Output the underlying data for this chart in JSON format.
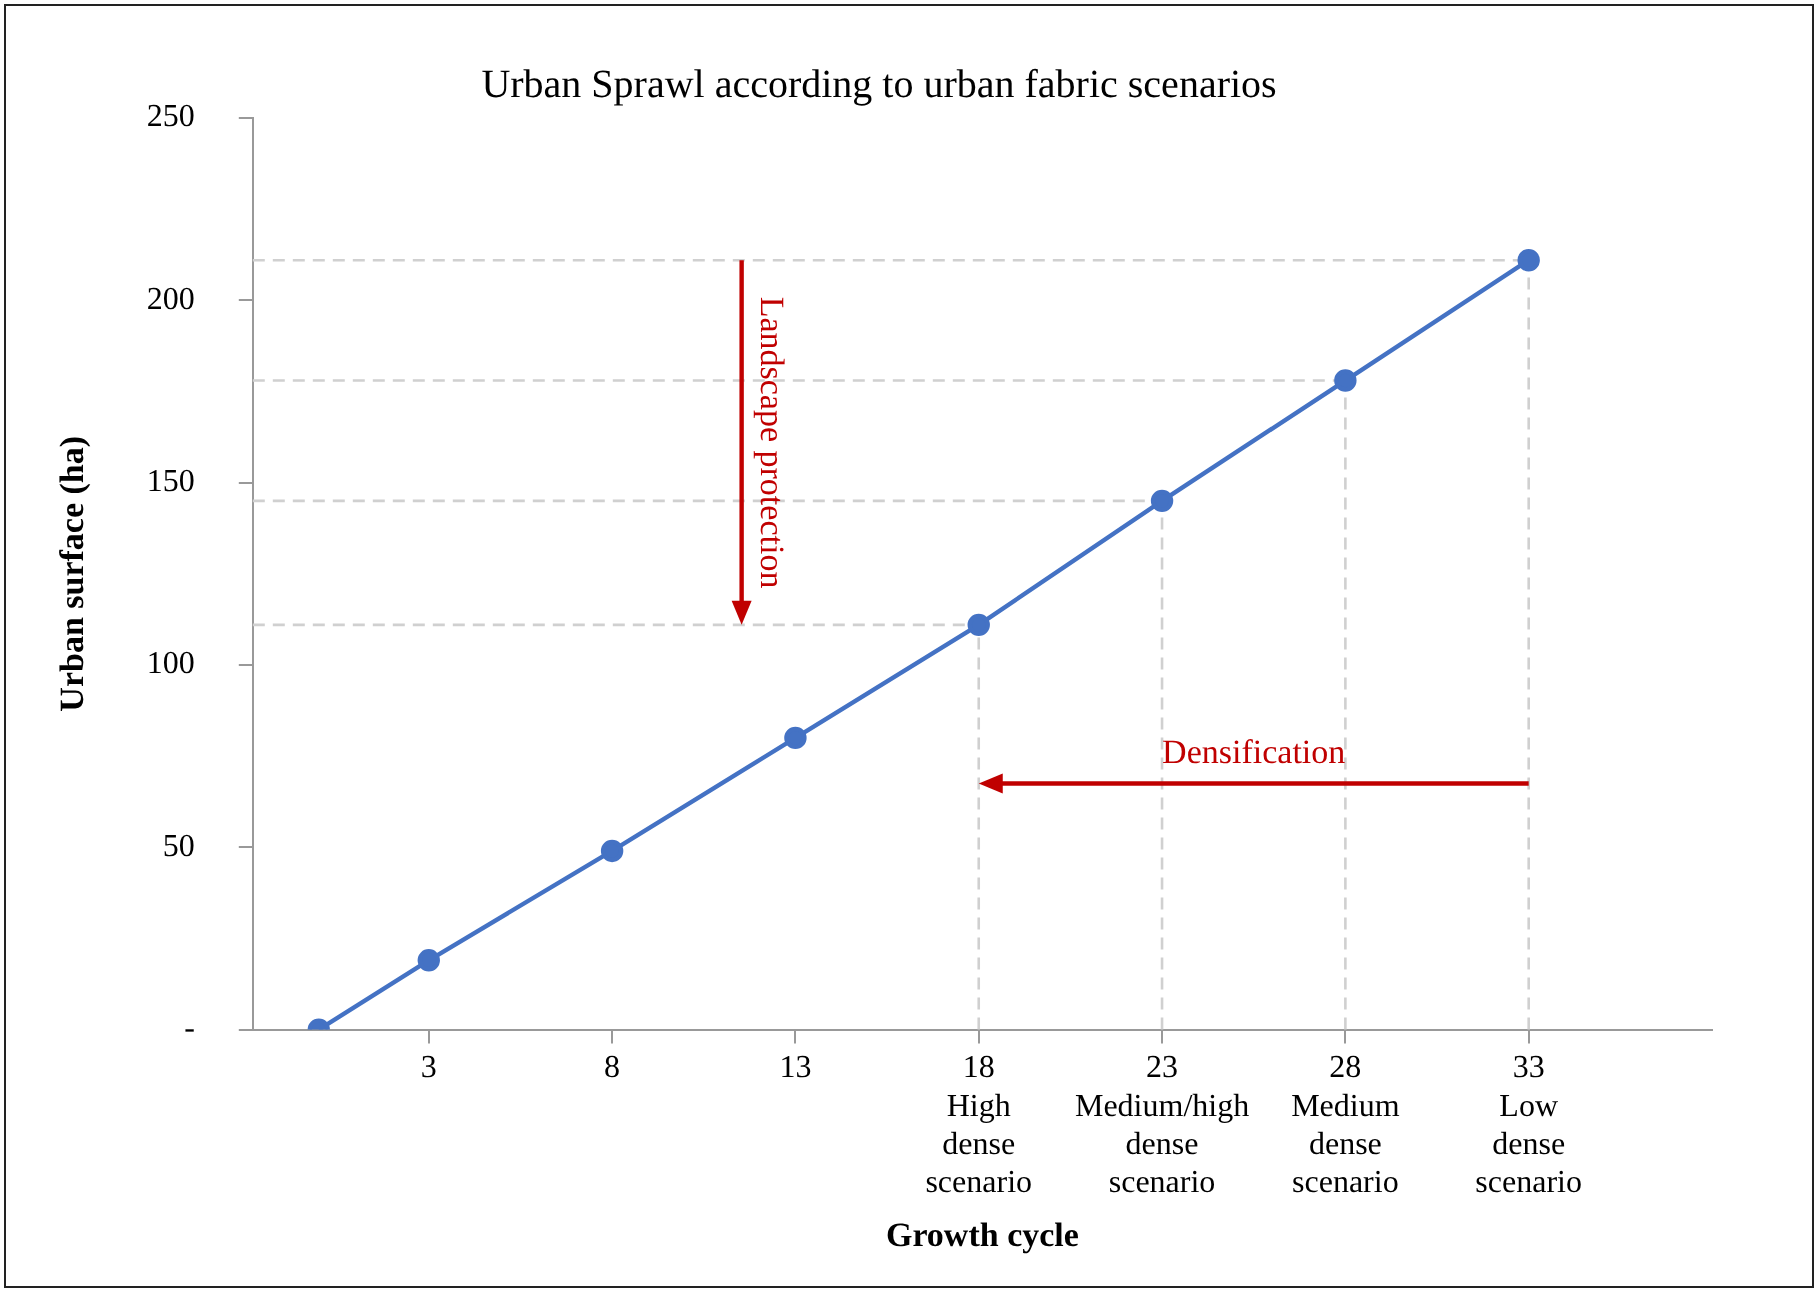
{
  "chart_data": {
    "type": "line",
    "title": "Urban Sprawl according to urban fabric scenarios",
    "xlabel": "Growth cycle",
    "ylabel": "Urban surface (ha)",
    "x": [
      0,
      3,
      8,
      13,
      18,
      23,
      28,
      33
    ],
    "series": [
      {
        "color": "#4472c4",
        "values": [
          0,
          19,
          49,
          80,
          111,
          145,
          178,
          211
        ]
      }
    ],
    "xlim": [
      -1.8,
      38
    ],
    "xticks": [
      3,
      8,
      13,
      {
        "value": 18,
        "label": "18\nHigh\ndense\nscenario"
      },
      {
        "value": 23,
        "label": "23\nMedium/high\ndense\nscenario"
      },
      {
        "value": 28,
        "label": "28\nMedium\ndense\nscenario"
      },
      {
        "value": 33,
        "label": "33\nLow\ndense\nscenario"
      }
    ],
    "ylim": [
      0,
      250
    ],
    "yticks": [
      {
        "value": 0,
        "label": "-"
      },
      50,
      100,
      150,
      200,
      250
    ],
    "ref_lines": [
      {
        "axis": "y",
        "value": 111,
        "color": "#d0d0d0",
        "line_style": "dashed"
      },
      {
        "axis": "y",
        "value": 145,
        "color": "#d0d0d0",
        "line_style": "dashed"
      },
      {
        "axis": "y",
        "value": 178,
        "color": "#d0d0d0",
        "line_style": "dashed"
      },
      {
        "axis": "y",
        "value": 211,
        "color": "#d0d0d0",
        "line_style": "dashed"
      },
      {
        "axis": "x",
        "value": 18,
        "color": "#d0d0d0",
        "line_style": "dashed"
      },
      {
        "axis": "x",
        "value": 23,
        "color": "#d0d0d0",
        "line_style": "dashed"
      },
      {
        "axis": "x",
        "value": 28,
        "color": "#d0d0d0",
        "line_style": "dashed"
      },
      {
        "axis": "x",
        "value": 33,
        "color": "#d0d0d0",
        "line_style": "dashed"
      }
    ],
    "annotations": [
      "Landscape protection",
      "Densification"
    ],
    "marker": "circle",
    "line_style": "solid",
    "grid": false,
    "legend": false
  }
}
